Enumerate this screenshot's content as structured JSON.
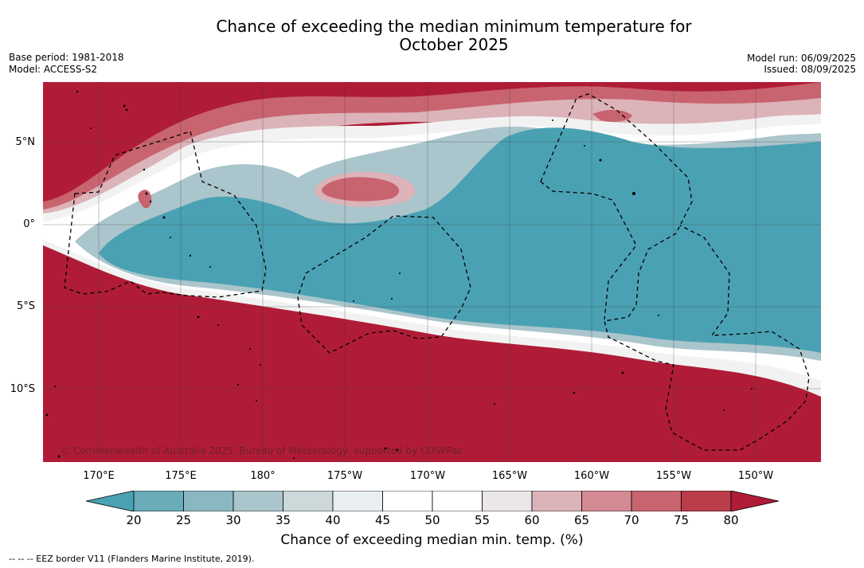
{
  "title_line1": "Chance of exceeding the median minimum temperature for",
  "title_line2": "October 2025",
  "base_period": "Base period: 1981-2018",
  "model": "Model: ACCESS-S2",
  "model_run": "Model run: 06/09/2025",
  "issued": "Issued: 08/09/2025",
  "lat_labels": [
    "5°N",
    "0°",
    "5°S",
    "10°S"
  ],
  "lon_labels": [
    "170°E",
    "175°E",
    "180°",
    "175°W",
    "170°W",
    "165°W",
    "160°W",
    "155°W",
    "150°W"
  ],
  "copyright": "© Commonwealth of Australia 2025, Bureau of Meteorology, supported by COSPPac",
  "colorbar": {
    "ticks": [
      "20",
      "25",
      "30",
      "35",
      "40",
      "45",
      "50",
      "55",
      "60",
      "65",
      "70",
      "75",
      "80"
    ],
    "colors": [
      "#4aa1b3",
      "#6aabb8",
      "#89b8c2",
      "#aac5cb",
      "#cdd8db",
      "#e9eff1",
      "#ffffff",
      "#ffffff",
      "#ebe7e8",
      "#dcb3b8",
      "#d48a93",
      "#c8646f",
      "#bb3d4c",
      "#b01c37"
    ],
    "label": "Chance of exceeding median min. temp. (%)"
  },
  "legend_note": "--  --  -- EEZ border V11 (Flanders Marine Institute, 2019)."
}
